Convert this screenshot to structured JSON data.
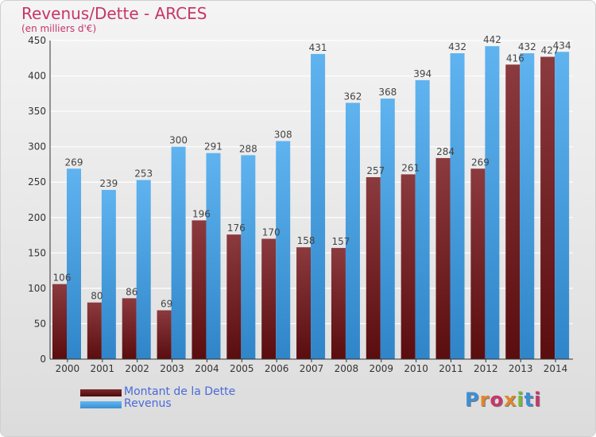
{
  "title": "Revenus/Dette - ARCES",
  "subtitle": "(en milliers d'€)",
  "logo_text": "Proxiti",
  "colors": {
    "dette": "#7b2e32",
    "revenus": "#4aa3e3",
    "title": "#c8356a",
    "legend_text": "#4a6ad8"
  },
  "legend": [
    {
      "label": "Montant de la Dette",
      "color": "#6e1618"
    },
    {
      "label": "Revenus",
      "color": "#4aa3e3"
    }
  ],
  "chart_data": {
    "type": "bar",
    "title": "Revenus/Dette - ARCES",
    "subtitle": "(en milliers d'€)",
    "categories": [
      "2000",
      "2001",
      "2002",
      "2003",
      "2004",
      "2005",
      "2006",
      "2007",
      "2008",
      "2009",
      "2010",
      "2011",
      "2012",
      "2013",
      "2014"
    ],
    "series": [
      {
        "name": "Montant de la Dette",
        "values": [
          106,
          80,
          86,
          69,
          196,
          176,
          170,
          158,
          157,
          257,
          261,
          284,
          269,
          416,
          427
        ]
      },
      {
        "name": "Revenus",
        "values": [
          269,
          239,
          253,
          300,
          291,
          288,
          308,
          431,
          362,
          368,
          394,
          432,
          442,
          432,
          434
        ]
      }
    ],
    "yticks": [
      0,
      50,
      100,
      150,
      200,
      250,
      300,
      350,
      400,
      450
    ],
    "ylim": [
      0,
      450
    ],
    "grid": true,
    "legend_position": "bottom-left"
  }
}
